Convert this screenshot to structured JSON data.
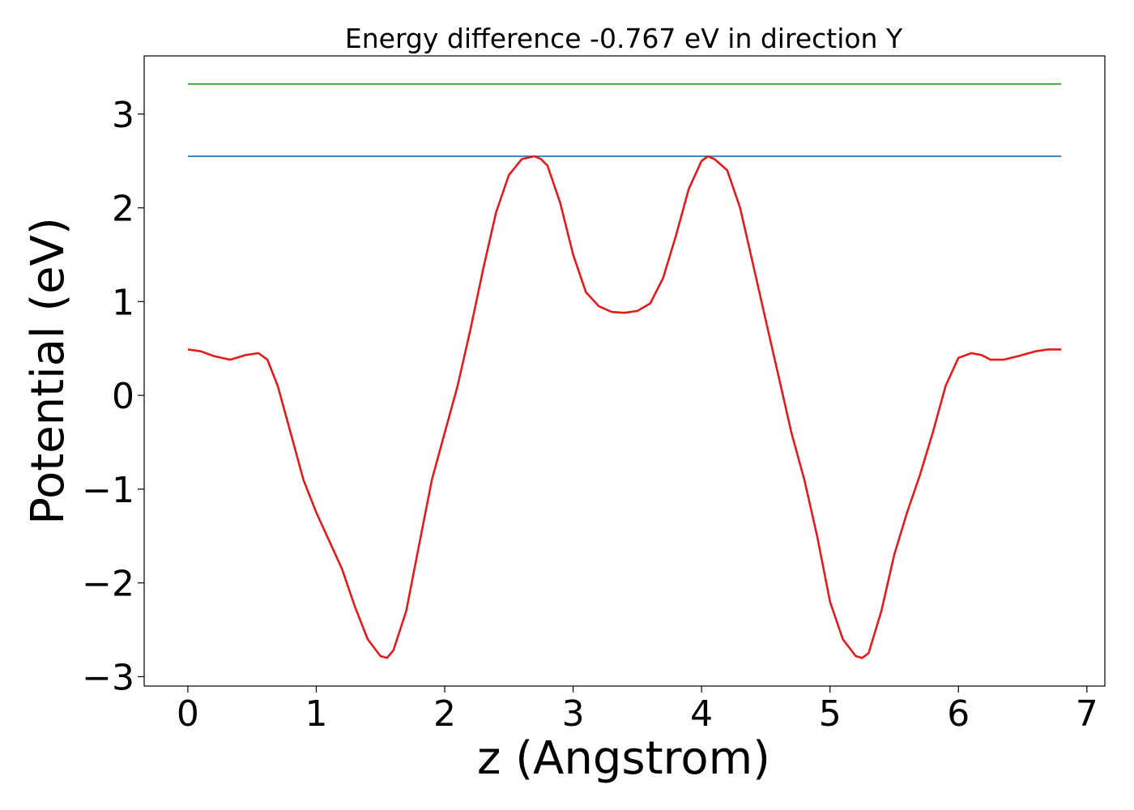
{
  "chart_data": {
    "type": "line",
    "title": "Energy difference -0.767 eV in direction Y",
    "xlabel": "z (Angstrom)",
    "ylabel": "Potential (eV)",
    "xlim": [
      -0.34,
      7.14
    ],
    "ylim": [
      -3.1,
      3.62
    ],
    "xticks": [
      0,
      1,
      2,
      3,
      4,
      5,
      6,
      7
    ],
    "yticks": [
      -3,
      -2,
      -1,
      0,
      1,
      2,
      3
    ],
    "xtick_labels": [
      "0",
      "1",
      "2",
      "3",
      "4",
      "5",
      "6",
      "7"
    ],
    "ytick_labels": [
      "−3",
      "−2",
      "−1",
      "0",
      "1",
      "2",
      "3"
    ],
    "grid": false,
    "series": [
      {
        "color": "#2ca02c",
        "x": [
          0,
          6.8
        ],
        "y": [
          3.32,
          3.32
        ]
      },
      {
        "color": "#1f77b4",
        "x": [
          0,
          6.8
        ],
        "y": [
          2.55,
          2.55
        ]
      },
      {
        "color": "#e41a1c",
        "x": [
          0,
          0.1,
          0.2,
          0.33,
          0.45,
          0.55,
          0.62,
          0.7,
          0.8,
          0.9,
          1.0,
          1.2,
          1.3,
          1.4,
          1.5,
          1.55,
          1.6,
          1.7,
          1.8,
          1.9,
          2.0,
          2.1,
          2.2,
          2.3,
          2.4,
          2.5,
          2.6,
          2.7,
          2.75,
          2.8,
          2.9,
          3.0,
          3.1,
          3.2,
          3.3,
          3.4,
          3.5,
          3.6,
          3.7,
          3.8,
          3.9,
          4.0,
          4.05,
          4.1,
          4.2,
          4.3,
          4.4,
          4.5,
          4.6,
          4.7,
          4.8,
          4.9,
          5.0,
          5.1,
          5.2,
          5.25,
          5.3,
          5.4,
          5.5,
          5.6,
          5.7,
          5.8,
          5.9,
          6.0,
          6.1,
          6.18,
          6.25,
          6.35,
          6.47,
          6.6,
          6.7,
          6.8
        ],
        "y": [
          0.49,
          0.47,
          0.42,
          0.38,
          0.43,
          0.45,
          0.38,
          0.1,
          -0.4,
          -0.9,
          -1.25,
          -1.85,
          -2.25,
          -2.6,
          -2.78,
          -2.8,
          -2.72,
          -2.3,
          -1.6,
          -0.9,
          -0.4,
          0.1,
          0.7,
          1.35,
          1.95,
          2.35,
          2.52,
          2.55,
          2.52,
          2.45,
          2.05,
          1.5,
          1.1,
          0.95,
          0.89,
          0.88,
          0.9,
          0.98,
          1.25,
          1.7,
          2.2,
          2.5,
          2.55,
          2.52,
          2.4,
          2.0,
          1.4,
          0.8,
          0.2,
          -0.4,
          -0.9,
          -1.5,
          -2.2,
          -2.6,
          -2.78,
          -2.8,
          -2.75,
          -2.3,
          -1.7,
          -1.25,
          -0.85,
          -0.4,
          0.1,
          0.4,
          0.45,
          0.43,
          0.38,
          0.38,
          0.42,
          0.47,
          0.49,
          0.49
        ]
      }
    ]
  }
}
